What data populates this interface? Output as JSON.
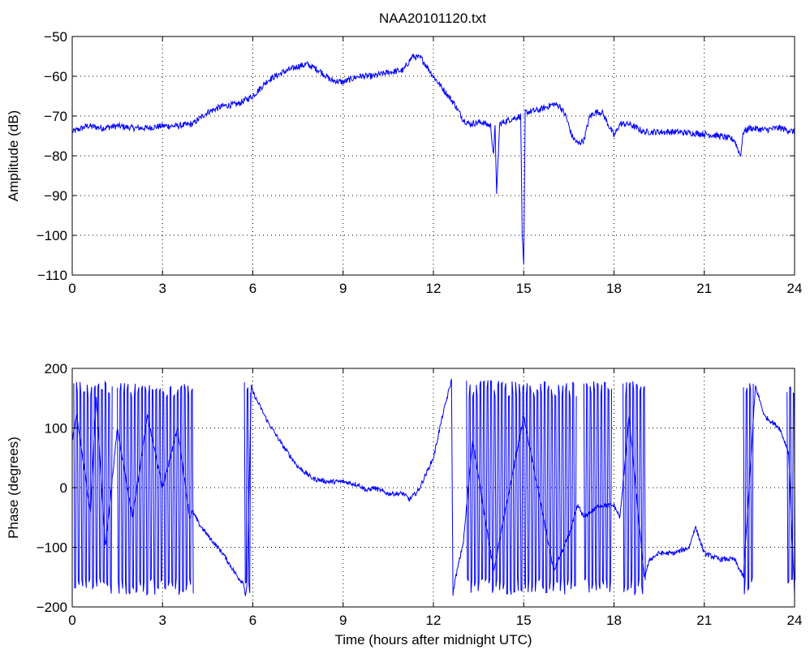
{
  "figure": {
    "title": "NAA20101120.txt",
    "line_color": "#0000ff"
  },
  "chart_data": [
    {
      "type": "line",
      "title": "NAA20101120.txt",
      "xlabel": "",
      "ylabel": "Amplitude (dB)",
      "xlim": [
        0,
        24
      ],
      "ylim": [
        -110,
        -50
      ],
      "xticks": [
        0,
        3,
        6,
        9,
        12,
        15,
        18,
        21,
        24
      ],
      "yticks": [
        -110,
        -100,
        -90,
        -80,
        -70,
        -60,
        -50
      ],
      "xtick_labels": [
        "0",
        "3",
        "6",
        "9",
        "12",
        "15",
        "18",
        "21",
        "24"
      ],
      "ytick_labels": [
        "−110",
        "−100",
        "−90",
        "−80",
        "−70",
        "−60",
        "−50"
      ],
      "grid": true,
      "noise": 0.8,
      "series": [
        {
          "color": "#0000ff",
          "x": [
            0,
            0.5,
            1,
            1.5,
            2,
            2.5,
            3,
            3.5,
            4,
            4.5,
            5,
            5.5,
            6,
            6.5,
            7,
            7.5,
            7.8,
            8.2,
            8.6,
            9,
            9.5,
            10,
            10.5,
            11,
            11.3,
            11.6,
            12,
            12.3,
            12.7,
            13,
            13.2,
            13.6,
            13.9,
            14.0,
            14.05,
            14.1,
            14.2,
            14.5,
            14.9,
            14.95,
            15.0,
            15.05,
            15.1,
            15.5,
            16,
            16.2,
            16.4,
            16.6,
            16.8,
            17,
            17.2,
            17.4,
            17.6,
            17.8,
            18,
            18.2,
            18.5,
            19,
            20,
            21,
            21.5,
            22,
            22.2,
            22.3,
            22.5,
            23,
            23.5,
            24
          ],
          "y": [
            -74,
            -72.5,
            -73,
            -72.5,
            -73,
            -73,
            -72.5,
            -72.5,
            -72,
            -69,
            -67.5,
            -67,
            -65,
            -61,
            -59,
            -57.5,
            -57,
            -58.5,
            -61,
            -61.5,
            -60,
            -60,
            -59,
            -58.5,
            -55,
            -55.5,
            -60,
            -63,
            -67,
            -71,
            -72,
            -71.5,
            -72.5,
            -80,
            -72,
            -90,
            -72,
            -71,
            -70,
            -100,
            -108,
            -69,
            -69,
            -68.5,
            -67,
            -67.5,
            -70,
            -75,
            -77,
            -76,
            -70,
            -69,
            -69,
            -72,
            -75,
            -72,
            -72,
            -74,
            -74,
            -74.5,
            -75,
            -76,
            -80,
            -74,
            -73,
            -73.5,
            -73,
            -74
          ]
        }
      ]
    },
    {
      "type": "line",
      "title": "",
      "xlabel": "Time (hours after midnight UTC)",
      "ylabel": "Phase (degrees)",
      "xlim": [
        0,
        24
      ],
      "ylim": [
        -200,
        200
      ],
      "xticks": [
        0,
        3,
        6,
        9,
        12,
        15,
        18,
        21,
        24
      ],
      "yticks": [
        -200,
        -100,
        0,
        100,
        200
      ],
      "xtick_labels": [
        "0",
        "3",
        "6",
        "9",
        "12",
        "15",
        "18",
        "21",
        "24"
      ],
      "ytick_labels": [
        "−200",
        "−100",
        "0",
        "100",
        "200"
      ],
      "grid": true,
      "noise": 4,
      "series": [
        {
          "color": "#0000ff",
          "x": [
            0,
            0.15,
            0.6,
            0.8,
            1.1,
            1.5,
            2,
            2.5,
            3,
            3.5,
            3.9,
            4.0,
            4.2,
            4.5,
            5,
            5.5,
            5.7,
            5.75,
            5.8,
            5.95,
            6,
            6.5,
            7,
            7.5,
            8,
            8.5,
            9,
            9.5,
            9.8,
            10,
            10.5,
            11,
            11.2,
            11.5,
            12,
            12.3,
            12.6,
            12.65,
            12.7,
            13,
            13.3,
            14,
            15,
            16,
            16.5,
            16.8,
            17,
            17.5,
            18,
            18.2,
            18.5,
            19,
            19.2,
            19.5,
            20,
            20.5,
            20.7,
            21,
            21.5,
            22,
            22.3,
            22.7,
            23,
            23.5,
            23.8,
            24
          ],
          "y": [
            80,
            120,
            -40,
            150,
            -100,
            100,
            -50,
            120,
            0,
            100,
            -50,
            -40,
            -60,
            -80,
            -110,
            -150,
            -160,
            -180,
            -170,
            170,
            160,
            110,
            70,
            35,
            15,
            10,
            10,
            5,
            -5,
            0,
            -10,
            -10,
            -20,
            -5,
            50,
            120,
            180,
            -180,
            -160,
            -90,
            80,
            -140,
            120,
            -140,
            -80,
            -30,
            -50,
            -30,
            -30,
            -50,
            120,
            -150,
            -120,
            -110,
            -110,
            -100,
            -65,
            -110,
            -120,
            -120,
            -150,
            170,
            120,
            100,
            60,
            -180
          ]
        }
      ],
      "wrapping_bands": [
        {
          "x0": 0.05,
          "x1": 1.3
        },
        {
          "x0": 1.5,
          "x1": 4.0
        },
        {
          "x0": 5.72,
          "x1": 5.92
        },
        {
          "x0": 13.1,
          "x1": 16.75
        },
        {
          "x0": 17.0,
          "x1": 17.9
        },
        {
          "x0": 18.3,
          "x1": 19.05
        },
        {
          "x0": 22.3,
          "x1": 22.65
        },
        {
          "x0": 23.75,
          "x1": 24.0
        }
      ]
    }
  ]
}
